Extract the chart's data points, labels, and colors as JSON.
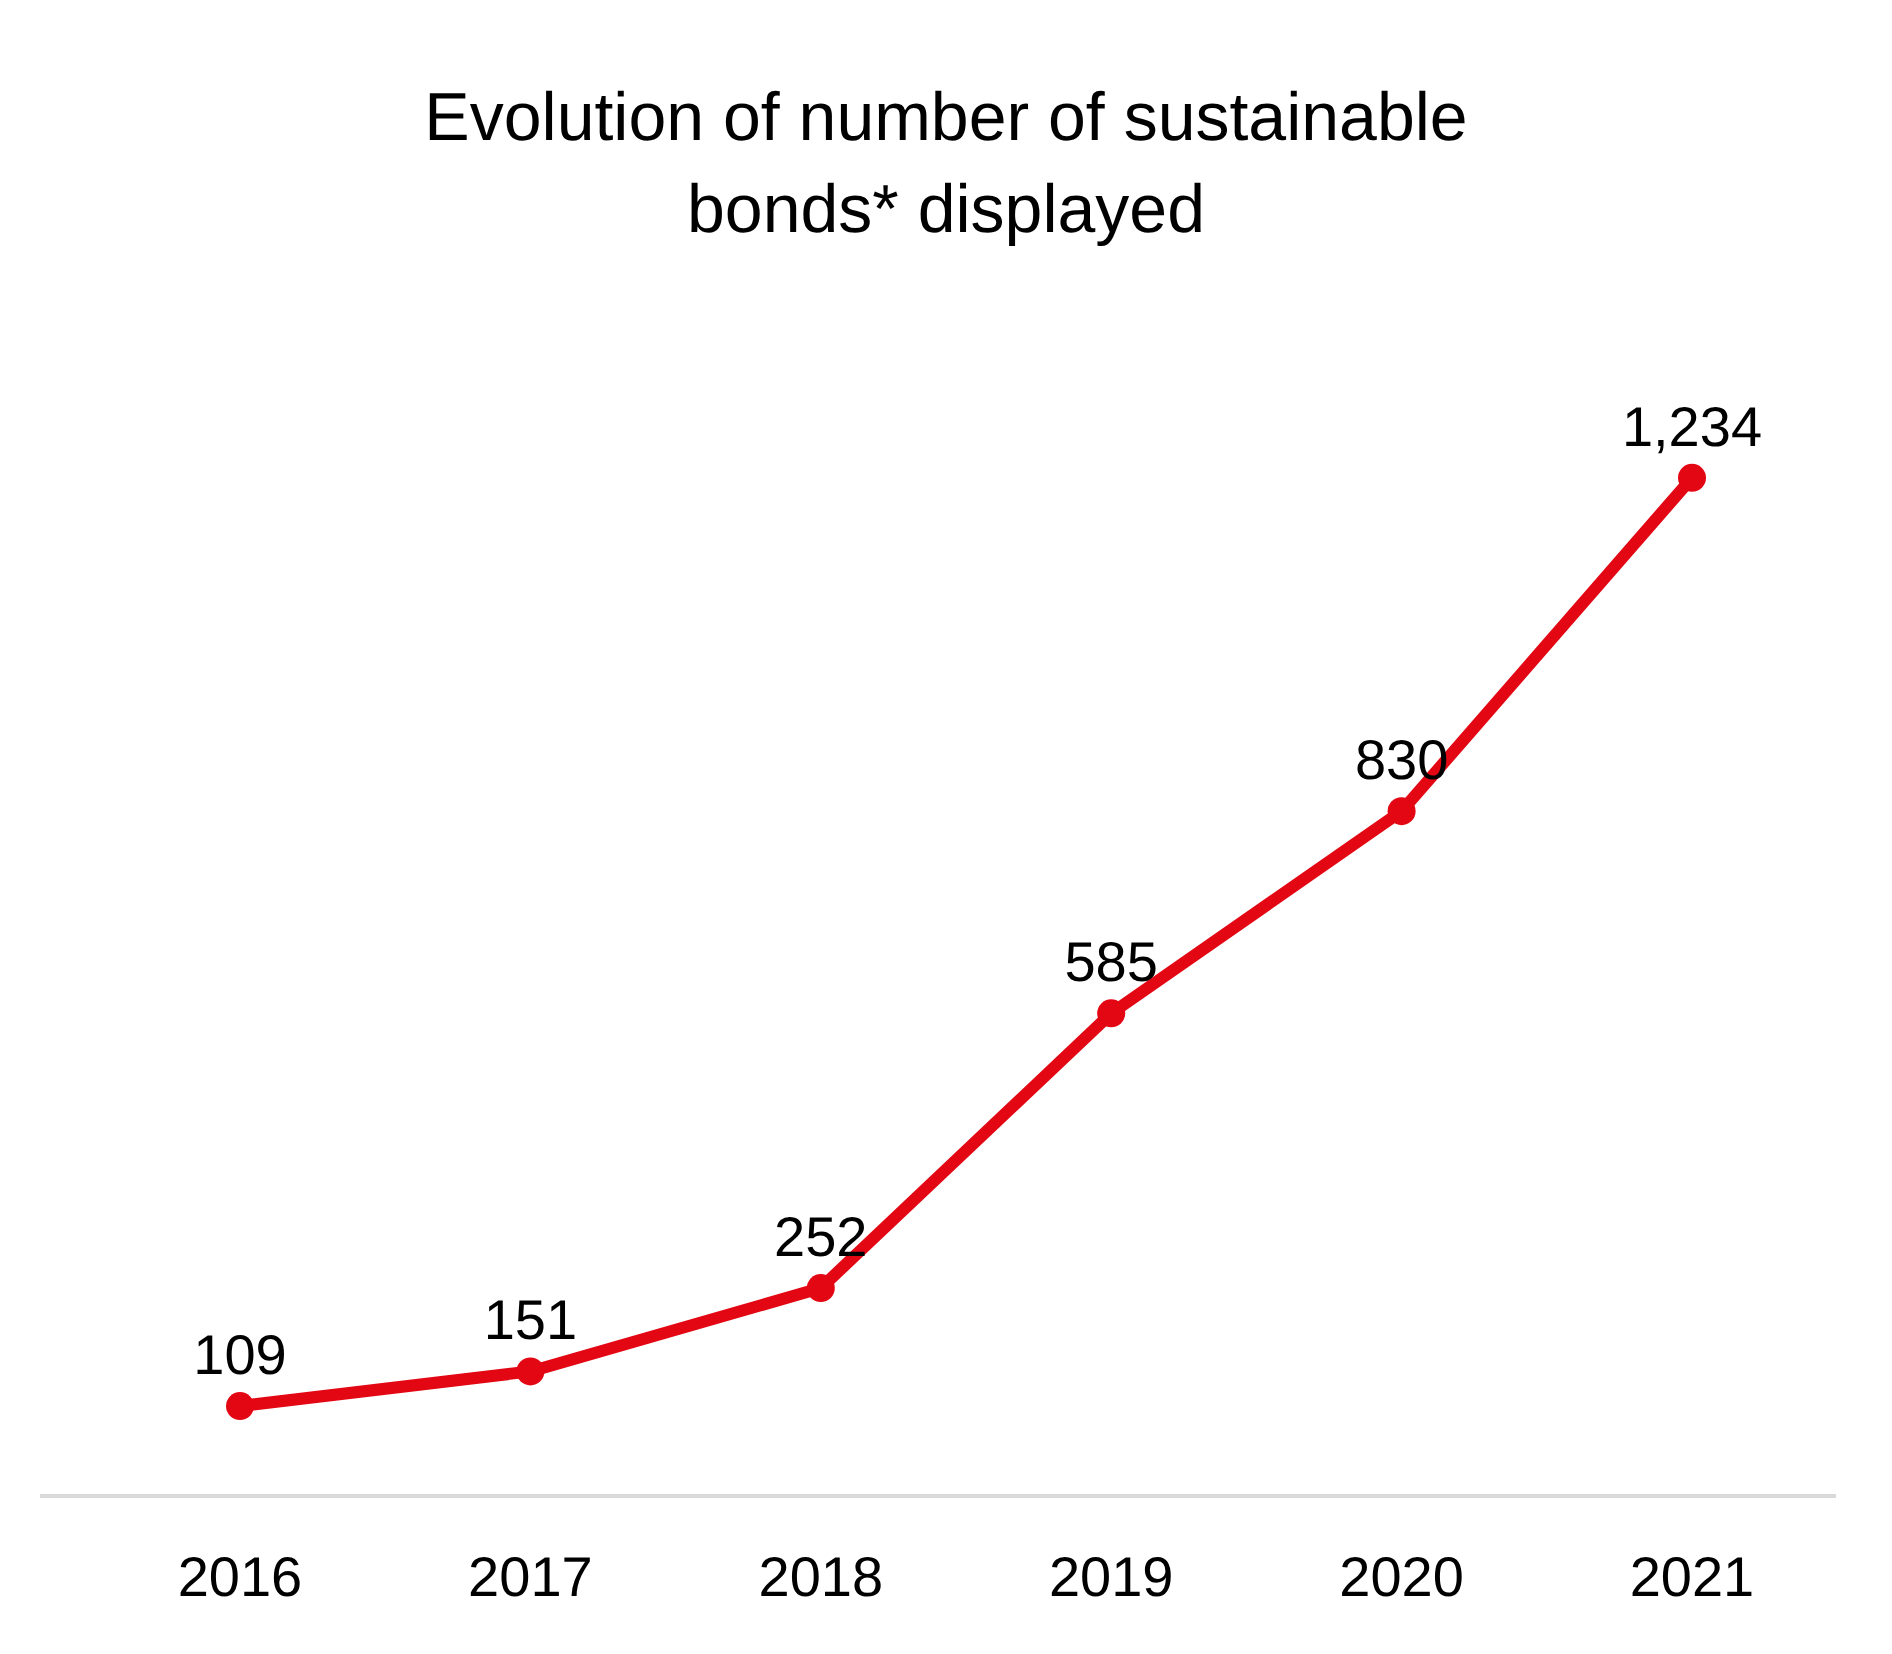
{
  "chart_data": {
    "type": "line",
    "title": "Evolution of number of sustainable bonds* displayed",
    "categories": [
      "2016",
      "2017",
      "2018",
      "2019",
      "2020",
      "2021"
    ],
    "series": [
      {
        "color": "#e30613",
        "values": [
          109,
          151,
          252,
          585,
          830,
          1234
        ],
        "value_labels": [
          "109",
          "151",
          "252",
          "585",
          "830",
          "1,234"
        ]
      }
    ],
    "marker": "circle",
    "tick_labels": "x"
  }
}
